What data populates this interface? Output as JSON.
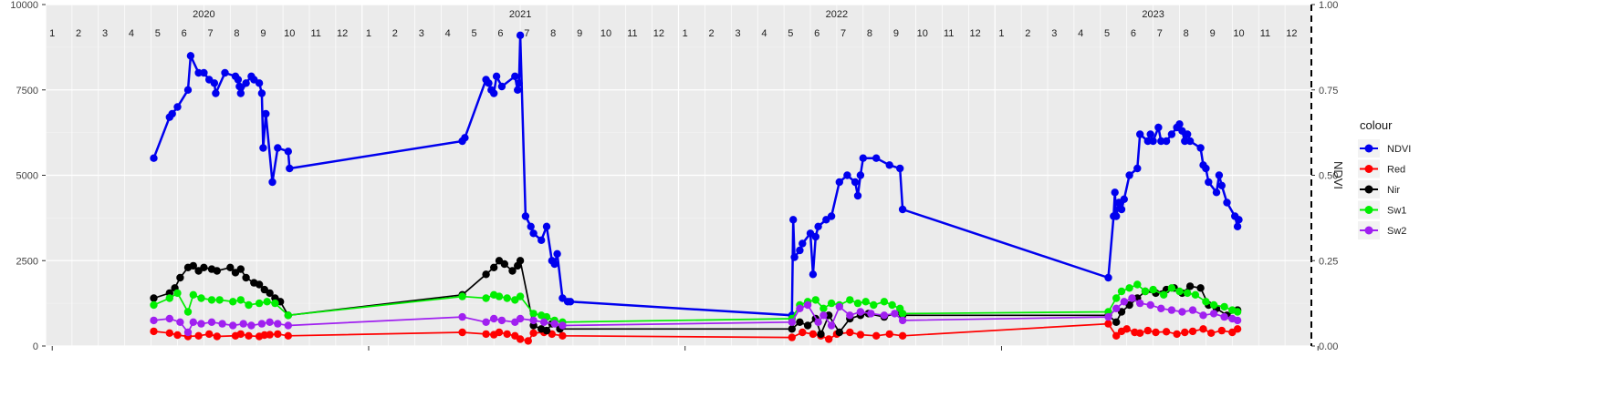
{
  "chart_data": {
    "type": "line",
    "title": "",
    "xlabel": "",
    "ylabel": "",
    "y2label": "NDVI",
    "ylim": [
      0,
      10000
    ],
    "y2lim": [
      0,
      1
    ],
    "y_ticks": [
      "0",
      "2500",
      "5000",
      "7500",
      "10000"
    ],
    "y2_ticks": [
      "0.00",
      "0.25",
      "0.50",
      "0.75",
      "1.00"
    ],
    "grid": true,
    "year_labels": [
      "2020",
      "2021",
      "2022",
      "2023"
    ],
    "month_labels": [
      "1",
      "2",
      "3",
      "4",
      "5",
      "6",
      "7",
      "8",
      "9",
      "10",
      "11",
      "12"
    ],
    "dashed_vline_at": 48,
    "legend": {
      "title": "colour",
      "position": "right",
      "entries": [
        {
          "name": "NDVI",
          "color": "#0000ee"
        },
        {
          "name": "Red",
          "color": "#ff0000"
        },
        {
          "name": "Nir",
          "color": "#000000"
        },
        {
          "name": "Sw1",
          "color": "#00ee00"
        },
        {
          "name": "Sw2",
          "color": "#a020f0"
        }
      ]
    },
    "series": [
      {
        "name": "NDVI",
        "color": "#0000ee",
        "x": [
          4.6,
          5.2,
          5.3,
          5.5,
          5.9,
          6.0,
          6.3,
          6.5,
          6.7,
          6.9,
          6.95,
          7.3,
          7.7,
          7.8,
          7.85,
          7.9,
          8.1,
          8.3,
          8.4,
          8.6,
          8.7,
          8.75,
          8.85,
          9.1,
          9.3,
          9.7,
          9.75,
          16.3,
          16.4,
          17.2,
          17.3,
          17.4,
          17.5,
          17.6,
          17.8,
          18.3,
          18.4,
          18.45,
          18.5,
          18.7,
          18.9,
          19.0,
          19.3,
          19.5,
          19.7,
          19.8,
          19.9,
          20.1,
          20.3,
          20.4,
          28.8,
          28.85,
          28.9,
          29.1,
          29.2,
          29.5,
          29.6,
          29.7,
          29.8,
          30.1,
          30.3,
          30.6,
          30.9,
          31.2,
          31.3,
          31.4,
          31.5,
          32.0,
          32.5,
          32.9,
          33.0,
          40.8,
          41.0,
          41.05,
          41.1,
          41.2,
          41.3,
          41.4,
          41.6,
          41.9,
          42.0,
          42.3,
          42.4,
          42.5,
          42.7,
          42.8,
          43.0,
          43.2,
          43.4,
          43.5,
          43.6,
          43.7,
          43.8,
          43.9,
          44.3,
          44.4,
          44.5,
          44.6,
          44.9,
          45.0,
          45.1,
          45.3,
          45.6,
          45.7,
          45.75
        ],
        "values": [
          0.55,
          0.67,
          0.68,
          0.7,
          0.75,
          0.85,
          0.8,
          0.8,
          0.78,
          0.77,
          0.74,
          0.8,
          0.79,
          0.78,
          0.76,
          0.74,
          0.77,
          0.79,
          0.78,
          0.77,
          0.74,
          0.58,
          0.68,
          0.48,
          0.58,
          0.57,
          0.52,
          0.6,
          0.61,
          0.78,
          0.77,
          0.75,
          0.74,
          0.79,
          0.76,
          0.79,
          0.75,
          0.77,
          0.91,
          0.38,
          0.35,
          0.33,
          0.31,
          0.35,
          0.25,
          0.24,
          0.27,
          0.14,
          0.13,
          0.13,
          0.09,
          0.37,
          0.26,
          0.28,
          0.3,
          0.33,
          0.21,
          0.32,
          0.35,
          0.37,
          0.38,
          0.48,
          0.5,
          0.48,
          0.44,
          0.5,
          0.55,
          0.55,
          0.53,
          0.52,
          0.4,
          0.2,
          0.38,
          0.45,
          0.38,
          0.42,
          0.4,
          0.43,
          0.5,
          0.52,
          0.62,
          0.6,
          0.62,
          0.6,
          0.64,
          0.6,
          0.6,
          0.62,
          0.64,
          0.65,
          0.63,
          0.6,
          0.62,
          0.6,
          0.58,
          0.53,
          0.52,
          0.48,
          0.45,
          0.5,
          0.47,
          0.42,
          0.38,
          0.35,
          0.37
        ]
      },
      {
        "name": "Red",
        "color": "#ff0000",
        "x": [
          4.6,
          5.2,
          5.5,
          5.9,
          6.3,
          6.7,
          7.0,
          7.7,
          7.9,
          8.2,
          8.6,
          8.8,
          9.0,
          9.3,
          9.7,
          16.3,
          17.2,
          17.5,
          17.7,
          18.0,
          18.3,
          18.5,
          18.8,
          19.0,
          19.4,
          19.7,
          20.1,
          28.8,
          29.2,
          29.6,
          29.9,
          30.2,
          30.5,
          31.0,
          31.4,
          32.0,
          32.5,
          33.0,
          40.8,
          41.1,
          41.3,
          41.5,
          41.8,
          42.0,
          42.3,
          42.6,
          43.0,
          43.4,
          43.7,
          44.0,
          44.4,
          44.7,
          45.1,
          45.5,
          45.7
        ],
        "values": [
          430,
          380,
          320,
          280,
          300,
          350,
          280,
          300,
          350,
          300,
          280,
          320,
          330,
          350,
          300,
          400,
          350,
          330,
          400,
          350,
          300,
          200,
          150,
          380,
          400,
          350,
          300,
          250,
          400,
          350,
          300,
          200,
          350,
          400,
          330,
          300,
          350,
          300,
          650,
          300,
          430,
          500,
          400,
          380,
          450,
          400,
          420,
          350,
          400,
          430,
          500,
          380,
          450,
          400,
          500
        ]
      },
      {
        "name": "Nir",
        "color": "#000000",
        "x": [
          4.6,
          5.2,
          5.4,
          5.6,
          5.9,
          6.1,
          6.3,
          6.5,
          6.8,
          7.0,
          7.5,
          7.7,
          7.9,
          8.1,
          8.4,
          8.6,
          8.8,
          9.0,
          9.2,
          9.4,
          9.7,
          16.3,
          17.2,
          17.5,
          17.7,
          17.9,
          18.2,
          18.4,
          18.5,
          19.0,
          19.3,
          19.5,
          19.7,
          20.0,
          28.8,
          29.1,
          29.4,
          29.7,
          29.9,
          30.2,
          30.6,
          31.0,
          31.4,
          31.7,
          32.3,
          32.9,
          33.0,
          40.8,
          41.1,
          41.3,
          41.6,
          41.9,
          42.2,
          42.6,
          43.0,
          43.3,
          43.6,
          43.9,
          44.3,
          44.6,
          44.9,
          45.3,
          45.7
        ],
        "values": [
          1400,
          1550,
          1700,
          2000,
          2300,
          2350,
          2200,
          2300,
          2250,
          2200,
          2300,
          2150,
          2250,
          2000,
          1850,
          1800,
          1650,
          1550,
          1400,
          1300,
          900,
          1500,
          2100,
          2300,
          2500,
          2400,
          2200,
          2350,
          2500,
          600,
          500,
          450,
          650,
          500,
          500,
          700,
          600,
          800,
          350,
          900,
          400,
          800,
          900,
          950,
          850,
          1000,
          900,
          900,
          700,
          1000,
          1200,
          1400,
          1600,
          1550,
          1650,
          1700,
          1550,
          1750,
          1700,
          1200,
          1100,
          900,
          1050
        ]
      },
      {
        "name": "Sw1",
        "color": "#00ee00",
        "x": [
          4.6,
          5.2,
          5.5,
          5.9,
          6.1,
          6.4,
          6.8,
          7.1,
          7.6,
          7.9,
          8.2,
          8.6,
          8.9,
          9.2,
          9.7,
          16.3,
          17.2,
          17.5,
          17.7,
          18.0,
          18.3,
          18.5,
          19.0,
          19.3,
          19.5,
          19.8,
          20.1,
          28.8,
          29.1,
          29.4,
          29.7,
          30.0,
          30.3,
          30.6,
          31.0,
          31.3,
          31.6,
          31.9,
          32.3,
          32.6,
          32.9,
          33.0,
          40.8,
          41.1,
          41.3,
          41.6,
          41.9,
          42.2,
          42.5,
          42.9,
          43.2,
          43.5,
          43.8,
          44.1,
          44.5,
          44.8,
          45.2,
          45.5,
          45.7
        ],
        "values": [
          1200,
          1400,
          1550,
          1000,
          1500,
          1400,
          1350,
          1350,
          1300,
          1350,
          1200,
          1250,
          1300,
          1250,
          900,
          1450,
          1400,
          1500,
          1450,
          1400,
          1350,
          1450,
          950,
          900,
          850,
          750,
          700,
          800,
          1200,
          1300,
          1350,
          1100,
          1250,
          1200,
          1350,
          1250,
          1300,
          1200,
          1300,
          1200,
          1100,
          950,
          1000,
          1400,
          1600,
          1700,
          1800,
          1600,
          1650,
          1500,
          1700,
          1600,
          1550,
          1500,
          1300,
          1200,
          1150,
          1050,
          1000
        ]
      },
      {
        "name": "Sw2",
        "color": "#a020f0",
        "x": [
          4.6,
          5.2,
          5.6,
          5.9,
          6.1,
          6.4,
          6.8,
          7.2,
          7.6,
          8.0,
          8.3,
          8.7,
          9.0,
          9.3,
          9.7,
          16.3,
          17.2,
          17.5,
          17.8,
          18.3,
          18.5,
          19.0,
          19.4,
          19.8,
          20.1,
          28.8,
          29.1,
          29.4,
          29.8,
          30.0,
          30.3,
          30.6,
          31.0,
          31.4,
          31.8,
          32.3,
          32.7,
          33.0,
          40.8,
          41.1,
          41.4,
          41.7,
          42.0,
          42.4,
          42.8,
          43.2,
          43.6,
          44.0,
          44.4,
          44.8,
          45.2,
          45.5,
          45.7
        ],
        "values": [
          750,
          800,
          700,
          400,
          700,
          650,
          700,
          650,
          600,
          650,
          600,
          650,
          700,
          650,
          600,
          850,
          700,
          800,
          750,
          700,
          800,
          750,
          700,
          650,
          600,
          700,
          1100,
          1200,
          700,
          900,
          600,
          1150,
          900,
          1000,
          950,
          900,
          950,
          750,
          850,
          1100,
          1300,
          1400,
          1250,
          1200,
          1100,
          1050,
          1000,
          1050,
          900,
          950,
          850,
          800,
          750
        ]
      }
    ]
  }
}
